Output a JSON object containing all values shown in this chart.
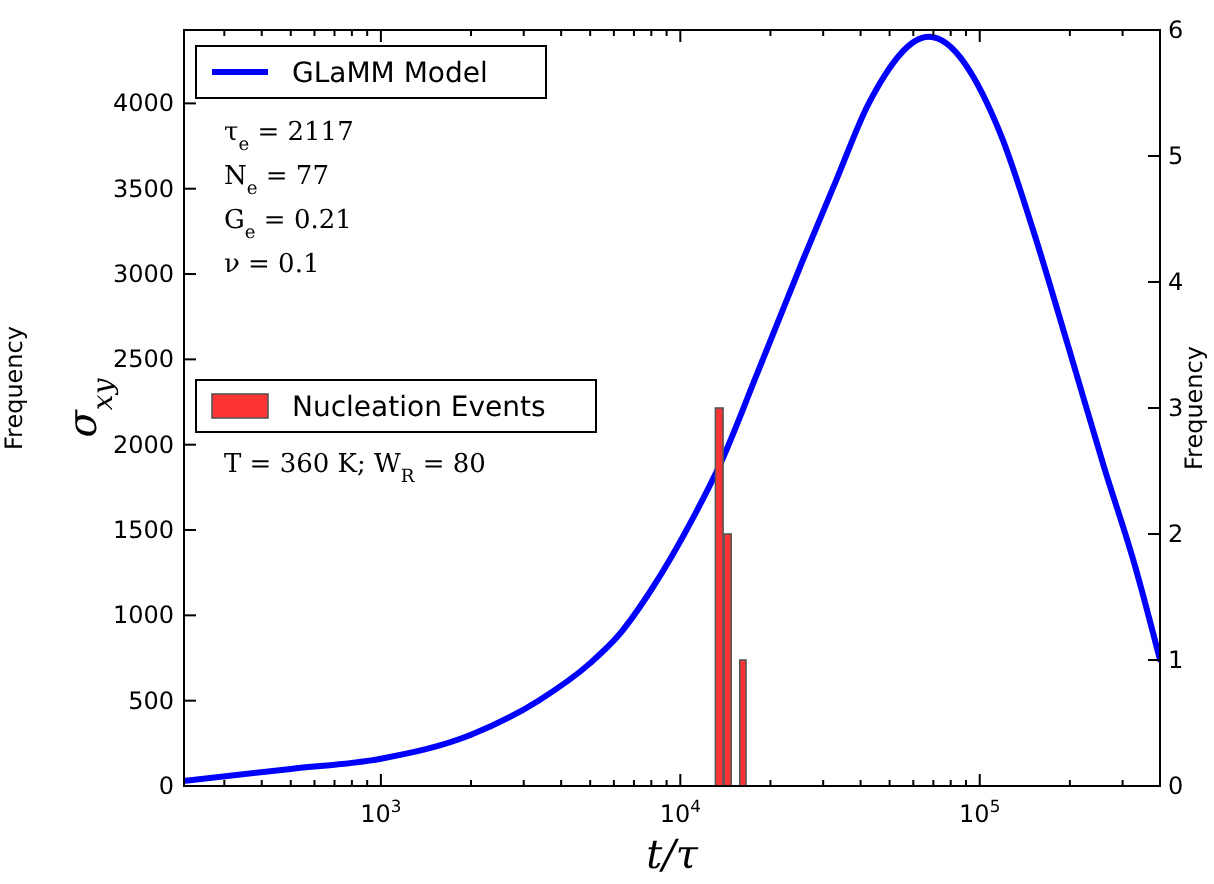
{
  "chart_data": {
    "type": "line",
    "xlabel": "t/τ",
    "ylabel": "σ$_{xy}$",
    "y2label": "Frequency",
    "log": "x",
    "xlim": [
      220,
      400000
    ],
    "ylim": [
      0,
      4430
    ],
    "y2lim": [
      0,
      6
    ],
    "xticks": [
      {
        "value": 300,
        "label": null
      },
      {
        "value": 400,
        "label": null
      },
      {
        "value": 500,
        "label": null
      },
      {
        "value": 600,
        "label": null
      },
      {
        "value": 700,
        "label": null
      },
      {
        "value": 800,
        "label": null
      },
      {
        "value": 900,
        "label": null
      },
      {
        "value": 1000,
        "label": "10$^{3}$"
      },
      {
        "value": 2000,
        "label": null
      },
      {
        "value": 3000,
        "label": null
      },
      {
        "value": 4000,
        "label": null
      },
      {
        "value": 5000,
        "label": null
      },
      {
        "value": 6000,
        "label": null
      },
      {
        "value": 7000,
        "label": null
      },
      {
        "value": 8000,
        "label": null
      },
      {
        "value": 9000,
        "label": null
      },
      {
        "value": 10000,
        "label": "10$^{4}$"
      },
      {
        "value": 20000,
        "label": null
      },
      {
        "value": 30000,
        "label": null
      },
      {
        "value": 40000,
        "label": null
      },
      {
        "value": 50000,
        "label": null
      },
      {
        "value": 60000,
        "label": null
      },
      {
        "value": 70000,
        "label": null
      },
      {
        "value": 80000,
        "label": null
      },
      {
        "value": 90000,
        "label": null
      },
      {
        "value": 100000,
        "label": "10$^{5}$"
      },
      {
        "value": 200000,
        "label": null
      },
      {
        "value": 300000,
        "label": null
      },
      {
        "value": 400000,
        "label": null
      }
    ],
    "yticks": [
      0,
      500,
      1000,
      1500,
      2000,
      2500,
      3000,
      3500,
      4000
    ],
    "y2ticks": [
      0,
      1,
      2,
      3,
      4,
      5,
      6
    ],
    "legend": "top left",
    "series": [
      {
        "name": "GLaMM Model",
        "color": "#0000ff",
        "x": [
          220,
          500,
          1000,
          2000,
          3360,
          5000,
          6200,
          8000,
          11100,
          13700,
          18000,
          25500,
          33000,
          42600,
          67700,
          118000,
          150000,
          198000,
          260000,
          330000,
          400000
        ],
        "values": [
          30,
          100,
          160,
          300,
          500,
          720,
          880,
          1150,
          1580,
          1900,
          2410,
          3070,
          3540,
          4000,
          4390,
          3810,
          3270,
          2570,
          1870,
          1290,
          740
        ]
      },
      {
        "type": "histogram",
        "name": "Nucleation Events",
        "color": "#ff3333",
        "axis": "y2",
        "bins": [
          13100,
          14000,
          14900,
          15800,
          16700
        ],
        "values": [
          3,
          2,
          0,
          1
        ]
      }
    ],
    "annotations": [
      "τ$_{e}$ = 2117",
      "N$_{e}$ = 77",
      "G$_{e}$ = 0.21",
      "ν = 0.1",
      "T = 360 K;  W$_{R}$ = 80",
      "Frequency"
    ]
  }
}
